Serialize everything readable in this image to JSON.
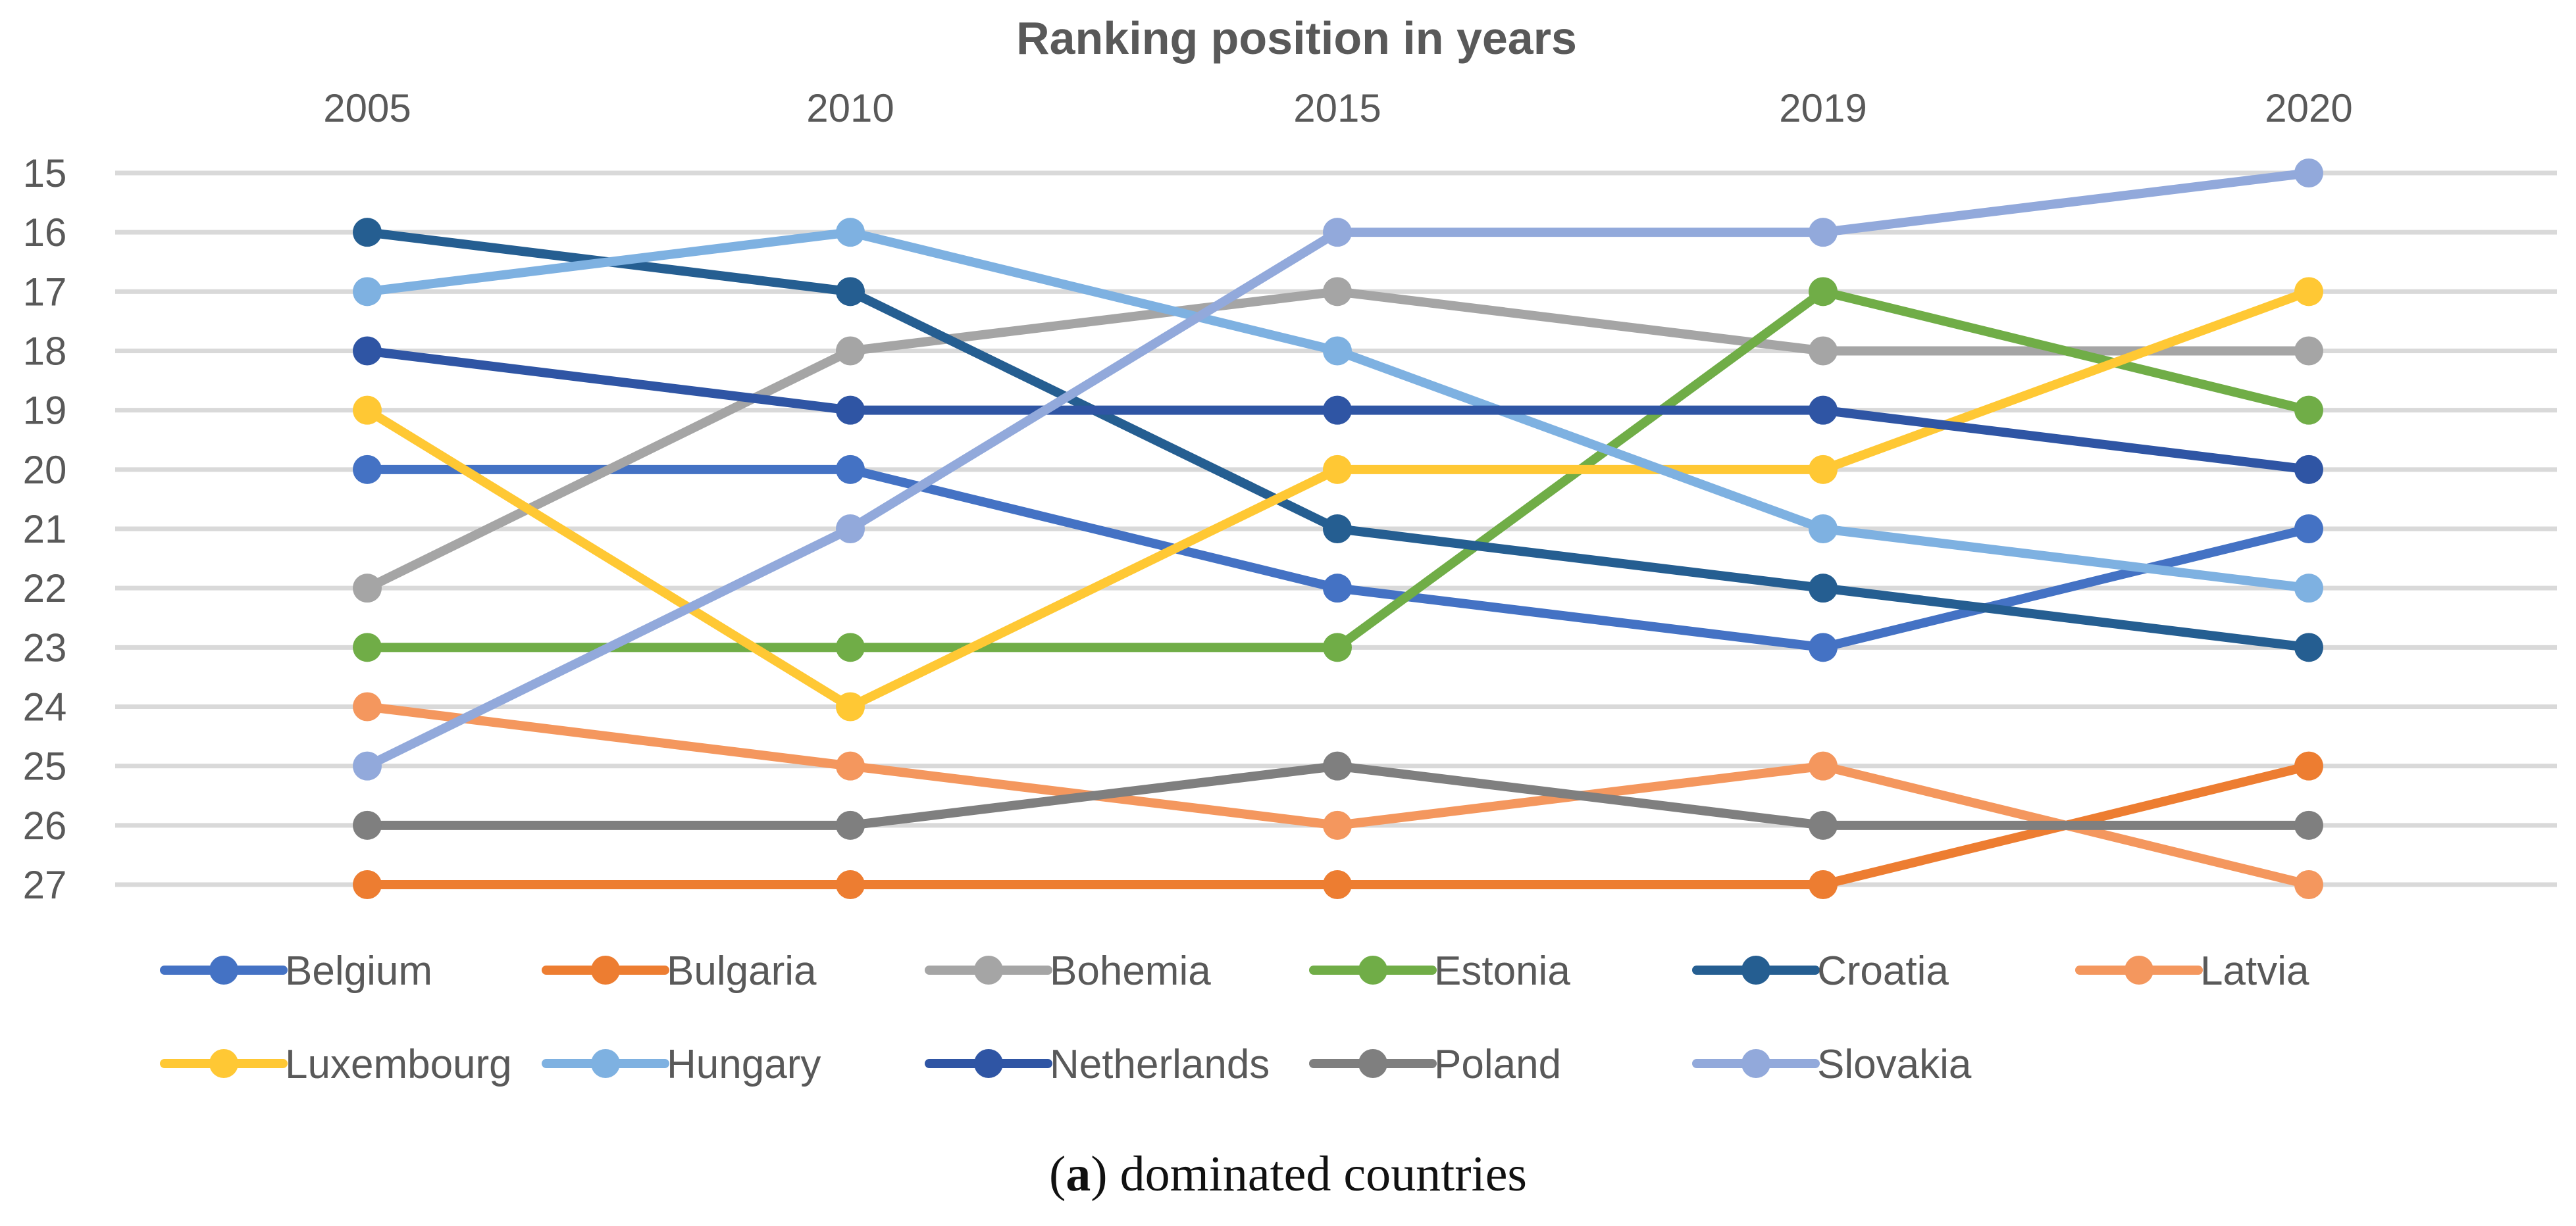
{
  "chart_data": {
    "type": "line",
    "title": "Ranking position in years",
    "categories": [
      "2005",
      "2010",
      "2015",
      "2019",
      "2020"
    ],
    "x_axis_position": "top",
    "y_axis_reversed": true,
    "ylim": [
      15,
      27
    ],
    "yticks": [
      "15",
      "16",
      "17",
      "18",
      "19",
      "20",
      "21",
      "22",
      "23",
      "24",
      "25",
      "26",
      "27"
    ],
    "grid": true,
    "legend_position": "bottom",
    "series": [
      {
        "name": "Belgium",
        "color": "#4472C4",
        "values": [
          20,
          20,
          22,
          23,
          21
        ]
      },
      {
        "name": "Bulgaria",
        "color": "#ED7D31",
        "values": [
          27,
          27,
          27,
          27,
          25
        ]
      },
      {
        "name": "Bohemia",
        "color": "#A5A5A5",
        "values": [
          22,
          18,
          17,
          18,
          18
        ]
      },
      {
        "name": "Estonia",
        "color": "#70AD47",
        "values": [
          23,
          23,
          23,
          17,
          19
        ]
      },
      {
        "name": "Croatia",
        "color": "#255E91",
        "values": [
          16,
          17,
          21,
          22,
          23
        ]
      },
      {
        "name": "Latvia",
        "color": "#F4975E",
        "values": [
          24,
          25,
          26,
          25,
          27
        ]
      },
      {
        "name": "Luxembourg",
        "color": "#FFC834",
        "values": [
          19,
          24,
          20,
          20,
          17
        ]
      },
      {
        "name": "Hungary",
        "color": "#7EB1E1",
        "values": [
          17,
          16,
          18,
          21,
          22
        ]
      },
      {
        "name": "Netherlands",
        "color": "#2F55A4",
        "values": [
          18,
          19,
          19,
          19,
          20
        ]
      },
      {
        "name": "Poland",
        "color": "#7F7F7F",
        "values": [
          26,
          26,
          25,
          26,
          26
        ]
      },
      {
        "name": "Slovakia",
        "color": "#92A9DB",
        "values": [
          25,
          21,
          16,
          16,
          15
        ]
      }
    ]
  },
  "caption": {
    "open_paren": "(",
    "label": "a",
    "rest": ") dominated countries"
  }
}
